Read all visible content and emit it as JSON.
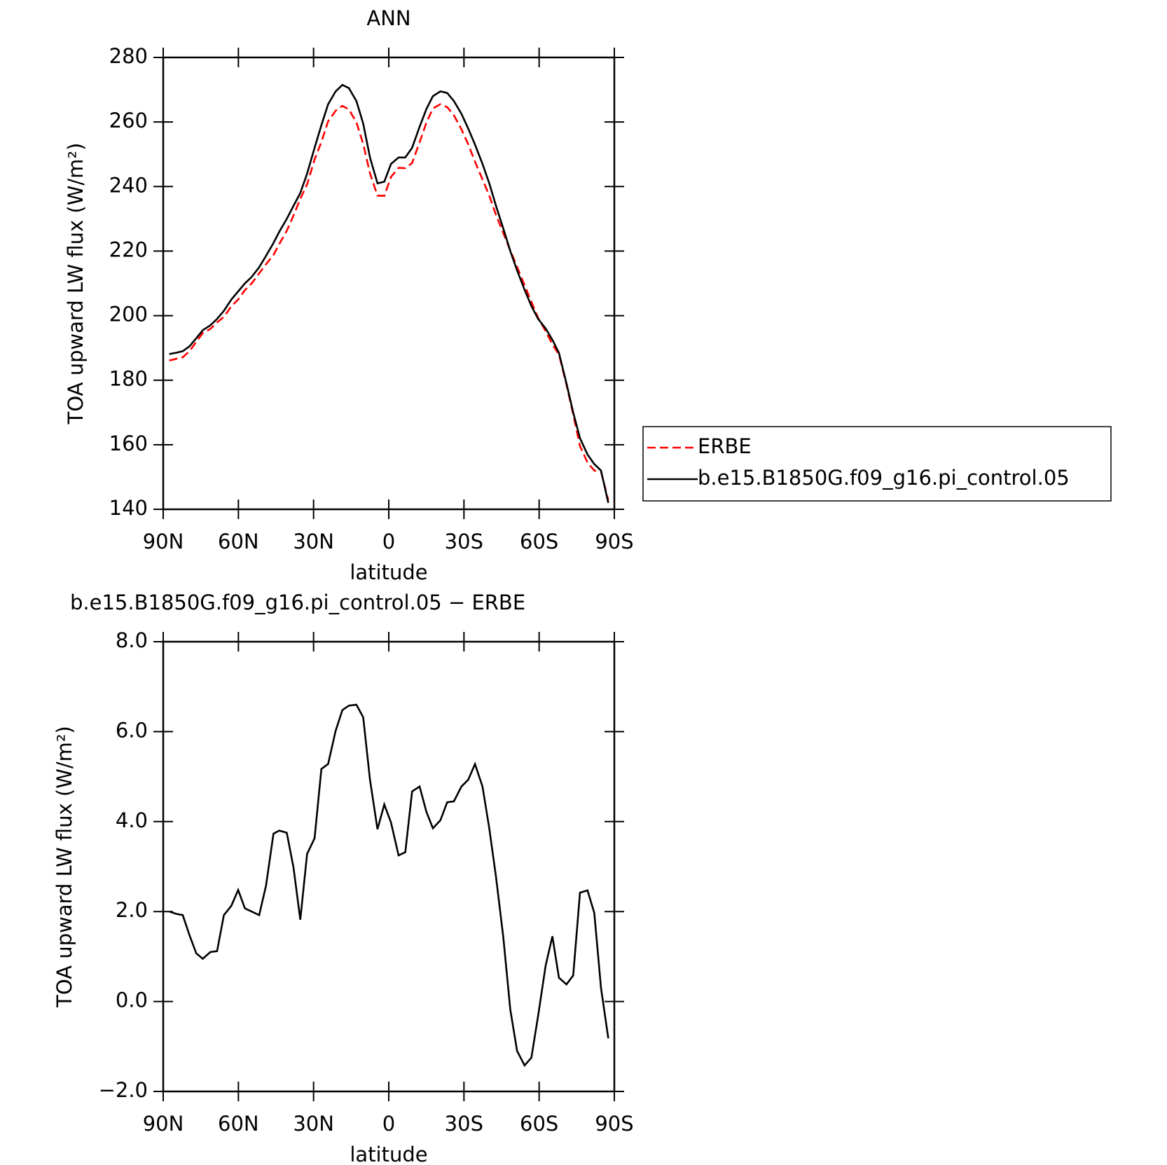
{
  "chart_data": [
    {
      "type": "line",
      "title": "ANN",
      "xlabel": "latitude",
      "ylabel": "TOA upward LW flux (W/m²)",
      "x": [
        87.6,
        84.9,
        82.2,
        79.5,
        76.8,
        74.2,
        71.2,
        68.5,
        65.8,
        62.8,
        60.1,
        57.4,
        54.7,
        51.7,
        49.0,
        46.0,
        43.7,
        40.7,
        38.0,
        35.3,
        32.6,
        29.6,
        26.9,
        24.2,
        21.2,
        18.5,
        15.9,
        12.9,
        10.2,
        7.5,
        4.5,
        1.8,
        -0.9,
        -3.9,
        -6.6,
        -9.3,
        -12.3,
        -15.0,
        -17.6,
        -20.6,
        -23.3,
        -26.0,
        -29.0,
        -31.7,
        -34.4,
        -37.4,
        -40.1,
        -42.8,
        -45.7,
        -48.5,
        -51.2,
        -54.2,
        -56.9,
        -59.6,
        -62.6,
        -65.3,
        -67.9,
        -70.9,
        -73.6,
        -76.3,
        -79.3,
        -82.0,
        -84.7,
        -87.6
      ],
      "series": [
        {
          "name": "ERBE",
          "color": "#ff0000",
          "dash": true,
          "values": [
            186.1,
            186.6,
            187.1,
            189.0,
            191.9,
            194.6,
            195.9,
            197.9,
            199.6,
            202.9,
            205.0,
            207.9,
            210.0,
            213.1,
            215.9,
            218.8,
            222.2,
            226.3,
            231.0,
            236.2,
            240.7,
            248.4,
            253.8,
            260.2,
            263.5,
            265.0,
            263.9,
            259.9,
            253.2,
            244.1,
            237.2,
            237.1,
            243.0,
            245.8,
            245.7,
            247.3,
            253.7,
            259.8,
            264.2,
            265.5,
            264.6,
            262.1,
            257.7,
            253.1,
            247.7,
            242.2,
            237.2,
            231.2,
            225.6,
            220.2,
            215.1,
            209.4,
            204.3,
            199.3,
            195.2,
            191.1,
            188.0,
            178.6,
            169.4,
            159.6,
            154.5,
            152.0,
            151.7,
            142.8
          ]
        },
        {
          "name": "b.e15.B1850G.f09_g16.pi_control.05",
          "color": "#000000",
          "dash": false,
          "values": [
            188.1,
            188.5,
            189,
            190.5,
            193,
            195.5,
            197,
            199,
            201.5,
            205,
            207.5,
            210,
            212,
            215,
            218.5,
            222.5,
            226,
            230,
            234,
            238,
            244,
            252,
            259,
            265.5,
            269.5,
            271.5,
            270.5,
            266.5,
            259.5,
            249,
            241,
            241.5,
            247,
            249,
            249,
            252,
            258.5,
            264,
            268,
            269.5,
            269,
            266.5,
            262.5,
            258,
            253,
            247,
            241,
            234,
            227,
            220,
            214,
            208,
            203,
            199,
            196,
            192.5,
            188.5,
            179,
            170,
            162,
            157,
            154,
            152,
            142
          ]
        }
      ],
      "xlim": [
        90,
        -90
      ],
      "xticks": [
        {
          "value": 90,
          "label": "90N"
        },
        {
          "value": 60,
          "label": "60N"
        },
        {
          "value": 30,
          "label": "30N"
        },
        0,
        {
          "value": -30,
          "label": "30S"
        },
        {
          "value": -60,
          "label": "60S"
        },
        {
          "value": -90,
          "label": "90S"
        }
      ],
      "ylim": [
        140,
        280
      ],
      "yticks": [
        140,
        160,
        180,
        200,
        220,
        240,
        260,
        280
      ],
      "legend": "right"
    },
    {
      "type": "line",
      "title": "b.e15.B1850G.f09_g16.pi_control.05 − ERBE",
      "xlabel": "latitude",
      "ylabel": "TOA upward LW flux (W/m²)",
      "x": [
        87.6,
        84.9,
        82.2,
        79.5,
        76.8,
        74.2,
        71.2,
        68.5,
        65.8,
        62.8,
        60.1,
        57.4,
        54.7,
        51.7,
        49.0,
        46.0,
        43.7,
        40.7,
        38.0,
        35.3,
        32.6,
        29.6,
        26.9,
        24.2,
        21.2,
        18.5,
        15.9,
        12.9,
        10.2,
        7.5,
        4.5,
        1.8,
        -0.9,
        -3.9,
        -6.6,
        -9.3,
        -12.3,
        -15.0,
        -17.6,
        -20.6,
        -23.3,
        -26.0,
        -29.0,
        -31.7,
        -34.4,
        -37.4,
        -40.1,
        -42.8,
        -45.7,
        -48.5,
        -51.2,
        -54.2,
        -56.9,
        -59.6,
        -62.6,
        -65.3,
        -67.9,
        -70.9,
        -73.6,
        -76.3,
        -79.3,
        -82.0,
        -84.7,
        -87.6
      ],
      "values": [
        2.0,
        1.95,
        1.92,
        1.47,
        1.07,
        0.95,
        1.1,
        1.12,
        1.92,
        2.13,
        2.48,
        2.07,
        2.0,
        1.92,
        2.57,
        3.73,
        3.8,
        3.75,
        2.98,
        1.82,
        3.28,
        3.63,
        5.17,
        5.28,
        6.02,
        6.48,
        6.58,
        6.6,
        6.32,
        4.93,
        3.83,
        4.38,
        3.98,
        3.25,
        3.32,
        4.67,
        4.78,
        4.22,
        3.85,
        4.03,
        4.43,
        4.45,
        4.78,
        4.93,
        5.28,
        4.78,
        3.85,
        2.77,
        1.43,
        -0.18,
        -1.1,
        -1.42,
        -1.25,
        -0.32,
        0.8,
        1.45,
        0.53,
        0.38,
        0.58,
        2.42,
        2.47,
        1.97,
        0.3,
        -0.82
      ],
      "color": "#000000",
      "xlim": [
        90,
        -90
      ],
      "xticks": [
        {
          "value": 90,
          "label": "90N"
        },
        {
          "value": 60,
          "label": "60N"
        },
        {
          "value": 30,
          "label": "30N"
        },
        0,
        {
          "value": -30,
          "label": "30S"
        },
        {
          "value": -60,
          "label": "60S"
        },
        {
          "value": -90,
          "label": "90S"
        }
      ],
      "ylim": [
        -2,
        8
      ],
      "yticks": [
        {
          "value": -2,
          "label": "−2.0"
        },
        {
          "value": 0,
          "label": "0.0"
        },
        {
          "value": 2,
          "label": "2.0"
        },
        {
          "value": 4,
          "label": "4.0"
        },
        {
          "value": 6,
          "label": "6.0"
        },
        {
          "value": 8,
          "label": "8.0"
        }
      ]
    }
  ]
}
